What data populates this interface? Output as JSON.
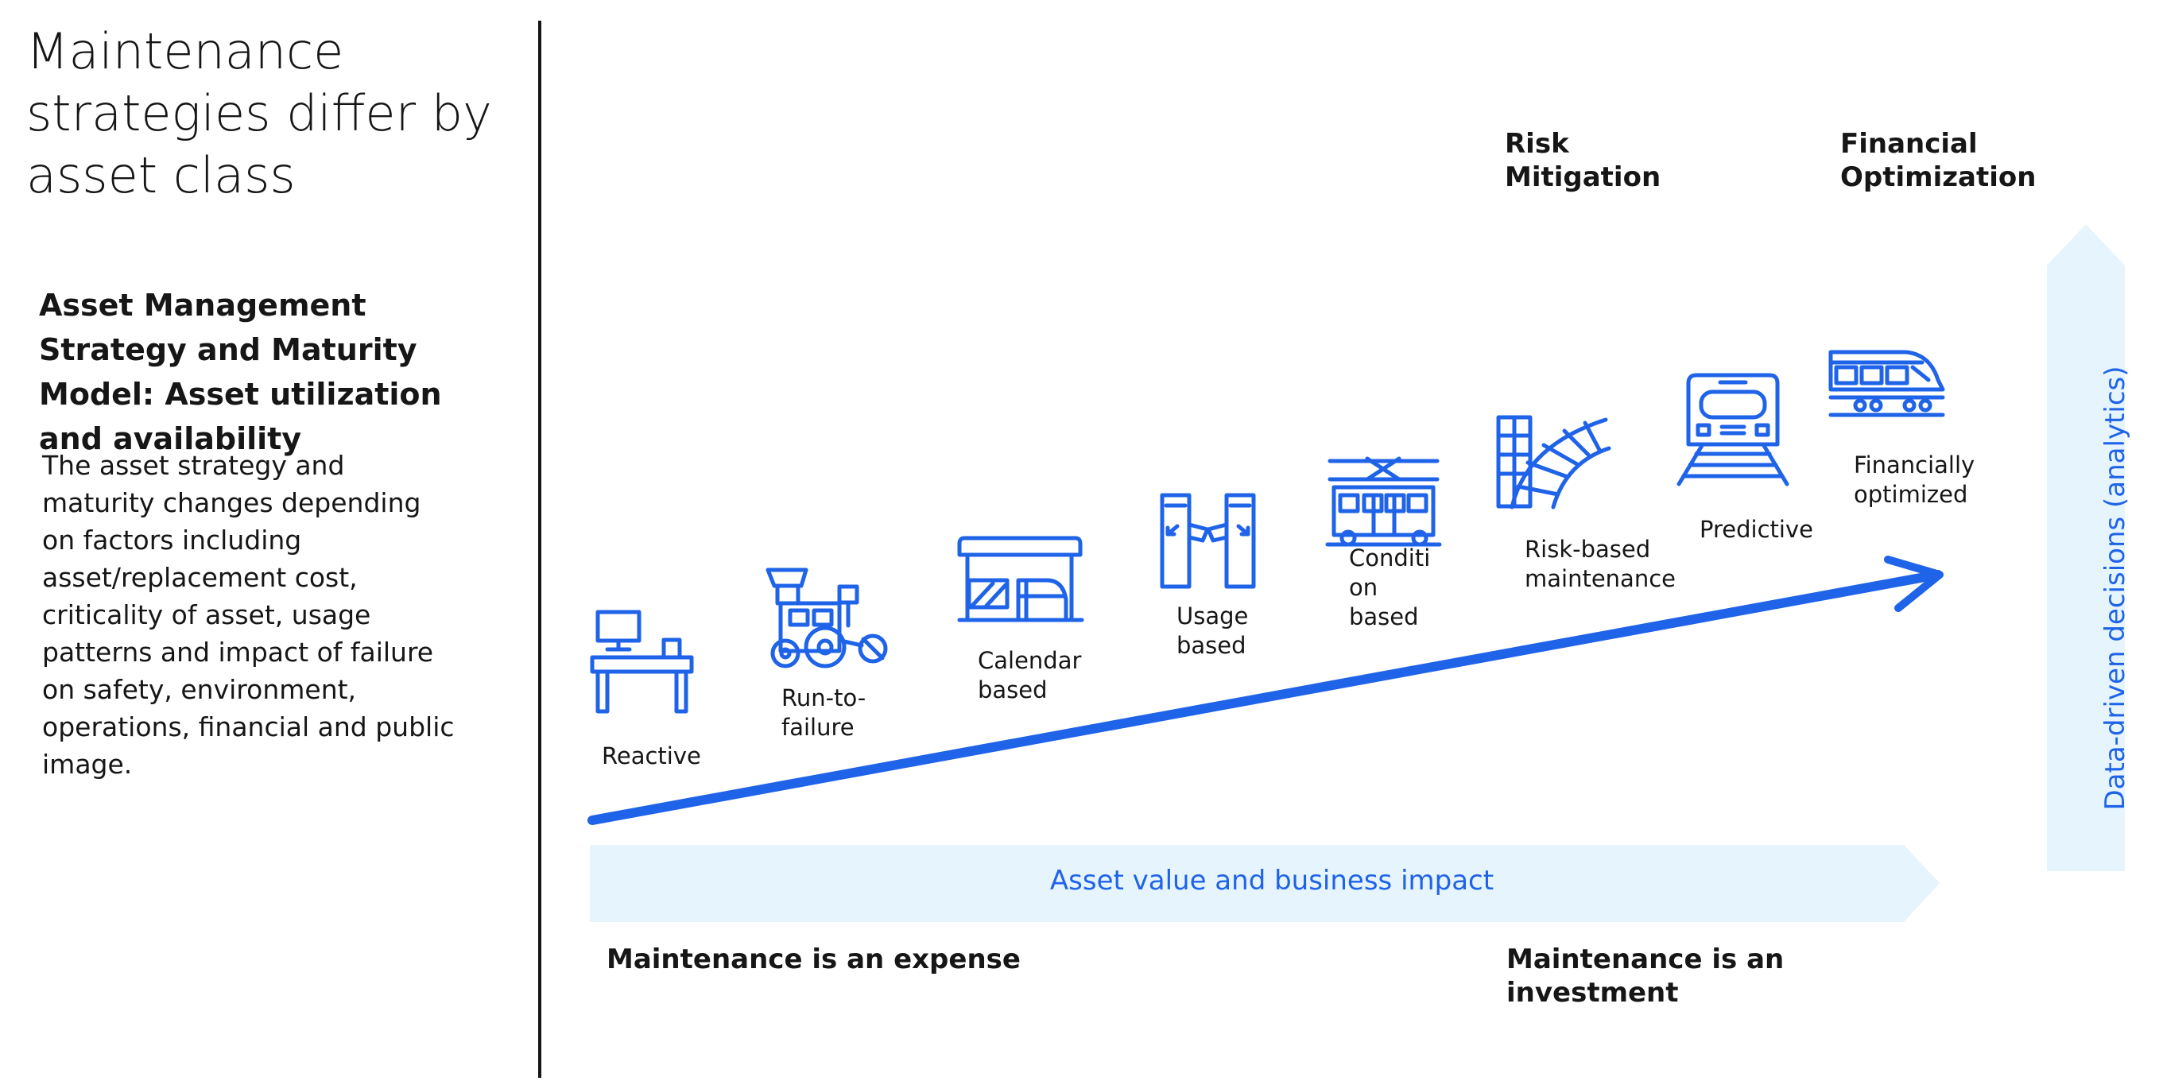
{
  "title": "Maintenance strategies differ by asset class",
  "subtitle": "Asset Management Strategy and Maturity Model: Asset utilization and availability",
  "body": "The asset strategy and maturity changes depending on factors including asset/replacement cost, criticality of asset, usage patterns and impact of failure on safety, environment, operations, financial and public image.",
  "headings": {
    "risk_mitigation": "Risk Mitigation",
    "financial_optimization": "Financial Optimization"
  },
  "stages": [
    {
      "label": "Reactive",
      "icon": "desk-computer-icon"
    },
    {
      "label": "Run-to-failure",
      "icon": "tractor-icon"
    },
    {
      "label": "Calendar based",
      "icon": "station-shelter-icon"
    },
    {
      "label": "Usage based",
      "icon": "turnstile-gate-icon"
    },
    {
      "label": "Conditi on based",
      "icon": "tram-icon"
    },
    {
      "label": "Risk-based maintenance",
      "icon": "curved-track-icon"
    },
    {
      "label": "Predictive",
      "icon": "train-front-icon"
    },
    {
      "label": "Financially optimized",
      "icon": "high-speed-train-icon"
    }
  ],
  "band_label": "Asset value and business impact",
  "vertical_label": "Data-driven decisions (analytics)",
  "bottom": {
    "left": "Maintenance is an expense",
    "right": "Maintenance is an investment"
  },
  "colors": {
    "accent": "#1f63e8",
    "band": "#e5f4fd",
    "text": "#161616"
  }
}
